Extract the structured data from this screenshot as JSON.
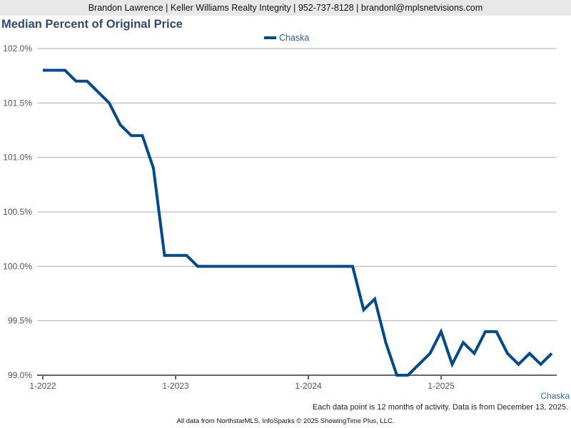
{
  "header": {
    "text": "Brandon Lawrence | Keller Williams Realty Integrity | 952-737-8128 | brandonl@mplsnetvisions.com"
  },
  "chart_data": {
    "type": "line",
    "title": "Median Percent of Original Price",
    "xlabel": "",
    "ylabel": "",
    "ylim": [
      99.0,
      102.0
    ],
    "yticks": [
      99.0,
      99.5,
      100.0,
      100.5,
      101.0,
      101.5,
      102.0
    ],
    "ytick_labels": [
      "99.0%",
      "99.5%",
      "100.0%",
      "100.5%",
      "101.0%",
      "101.5%",
      "102.0%"
    ],
    "xtick_labels": [
      "1-2022",
      "1-2023",
      "1-2024",
      "1-2025"
    ],
    "xtick_month_index": [
      0,
      12,
      24,
      36
    ],
    "x_start": "1-2022",
    "legend": "top-center",
    "grid": true,
    "color": "#004b8d",
    "series": [
      {
        "name": "Chaska",
        "values": [
          101.8,
          101.8,
          101.8,
          101.7,
          101.7,
          101.6,
          101.5,
          101.3,
          101.2,
          101.2,
          100.9,
          100.1,
          100.1,
          100.1,
          100.0,
          100.0,
          100.0,
          100.0,
          100.0,
          100.0,
          100.0,
          100.0,
          100.0,
          100.0,
          100.0,
          100.0,
          100.0,
          100.0,
          100.0,
          99.6,
          99.7,
          99.3,
          99.0,
          99.0,
          99.1,
          99.2,
          99.4,
          99.1,
          99.3,
          99.2,
          99.4,
          99.4,
          99.2,
          99.1,
          99.2,
          99.1,
          99.2
        ]
      }
    ]
  },
  "series_label": "Chaska",
  "footer": {
    "note": "Each data point is 12 months of activity. Data is from December 13, 2025.",
    "source": "All data from NorthstarMLS. InfoSparks © 2025 ShowingTime Plus, LLC."
  }
}
